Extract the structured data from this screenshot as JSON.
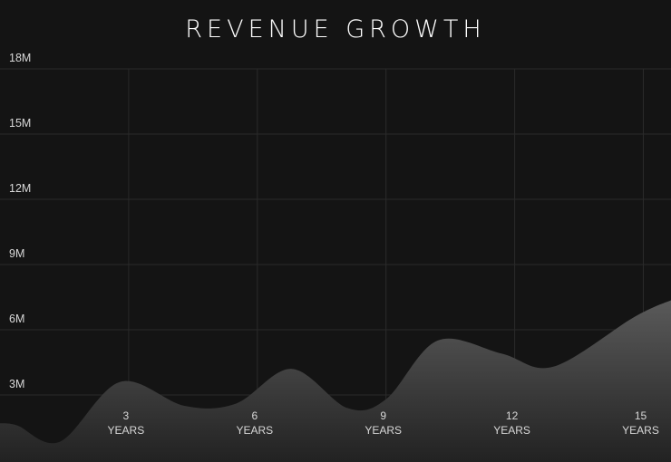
{
  "chart_data": {
    "type": "area",
    "title": "REVENUE GROWTH",
    "xlabel": "",
    "ylabel": "",
    "x_unit": "YEARS",
    "x_ticks": [
      "3",
      "6",
      "9",
      "12",
      "15"
    ],
    "y_ticks": [
      "3M",
      "6M",
      "9M",
      "12M",
      "15M",
      "18M"
    ],
    "ylim": [
      0,
      18000000
    ],
    "xlim": [
      0,
      15.7
    ],
    "grid": true,
    "legend": "none",
    "colors": {
      "background": "#141414",
      "grid": "#2a2a2a",
      "area_top": "#5a5a5a",
      "area_bottom": "#222222",
      "text": "#d8d8d8",
      "title": "#ffffff"
    },
    "series": [
      {
        "x": [
          0,
          0.4,
          1.4,
          2.8,
          4.3,
          5.5,
          6.8,
          8.1,
          9.0,
          10.2,
          11.7,
          12.9,
          14.8,
          15.7
        ],
        "values": [
          1700000,
          1600000,
          850000,
          3600000,
          2500000,
          2600000,
          4200000,
          2400000,
          2800000,
          5500000,
          4900000,
          4300000,
          6600000,
          7400000
        ]
      }
    ]
  }
}
